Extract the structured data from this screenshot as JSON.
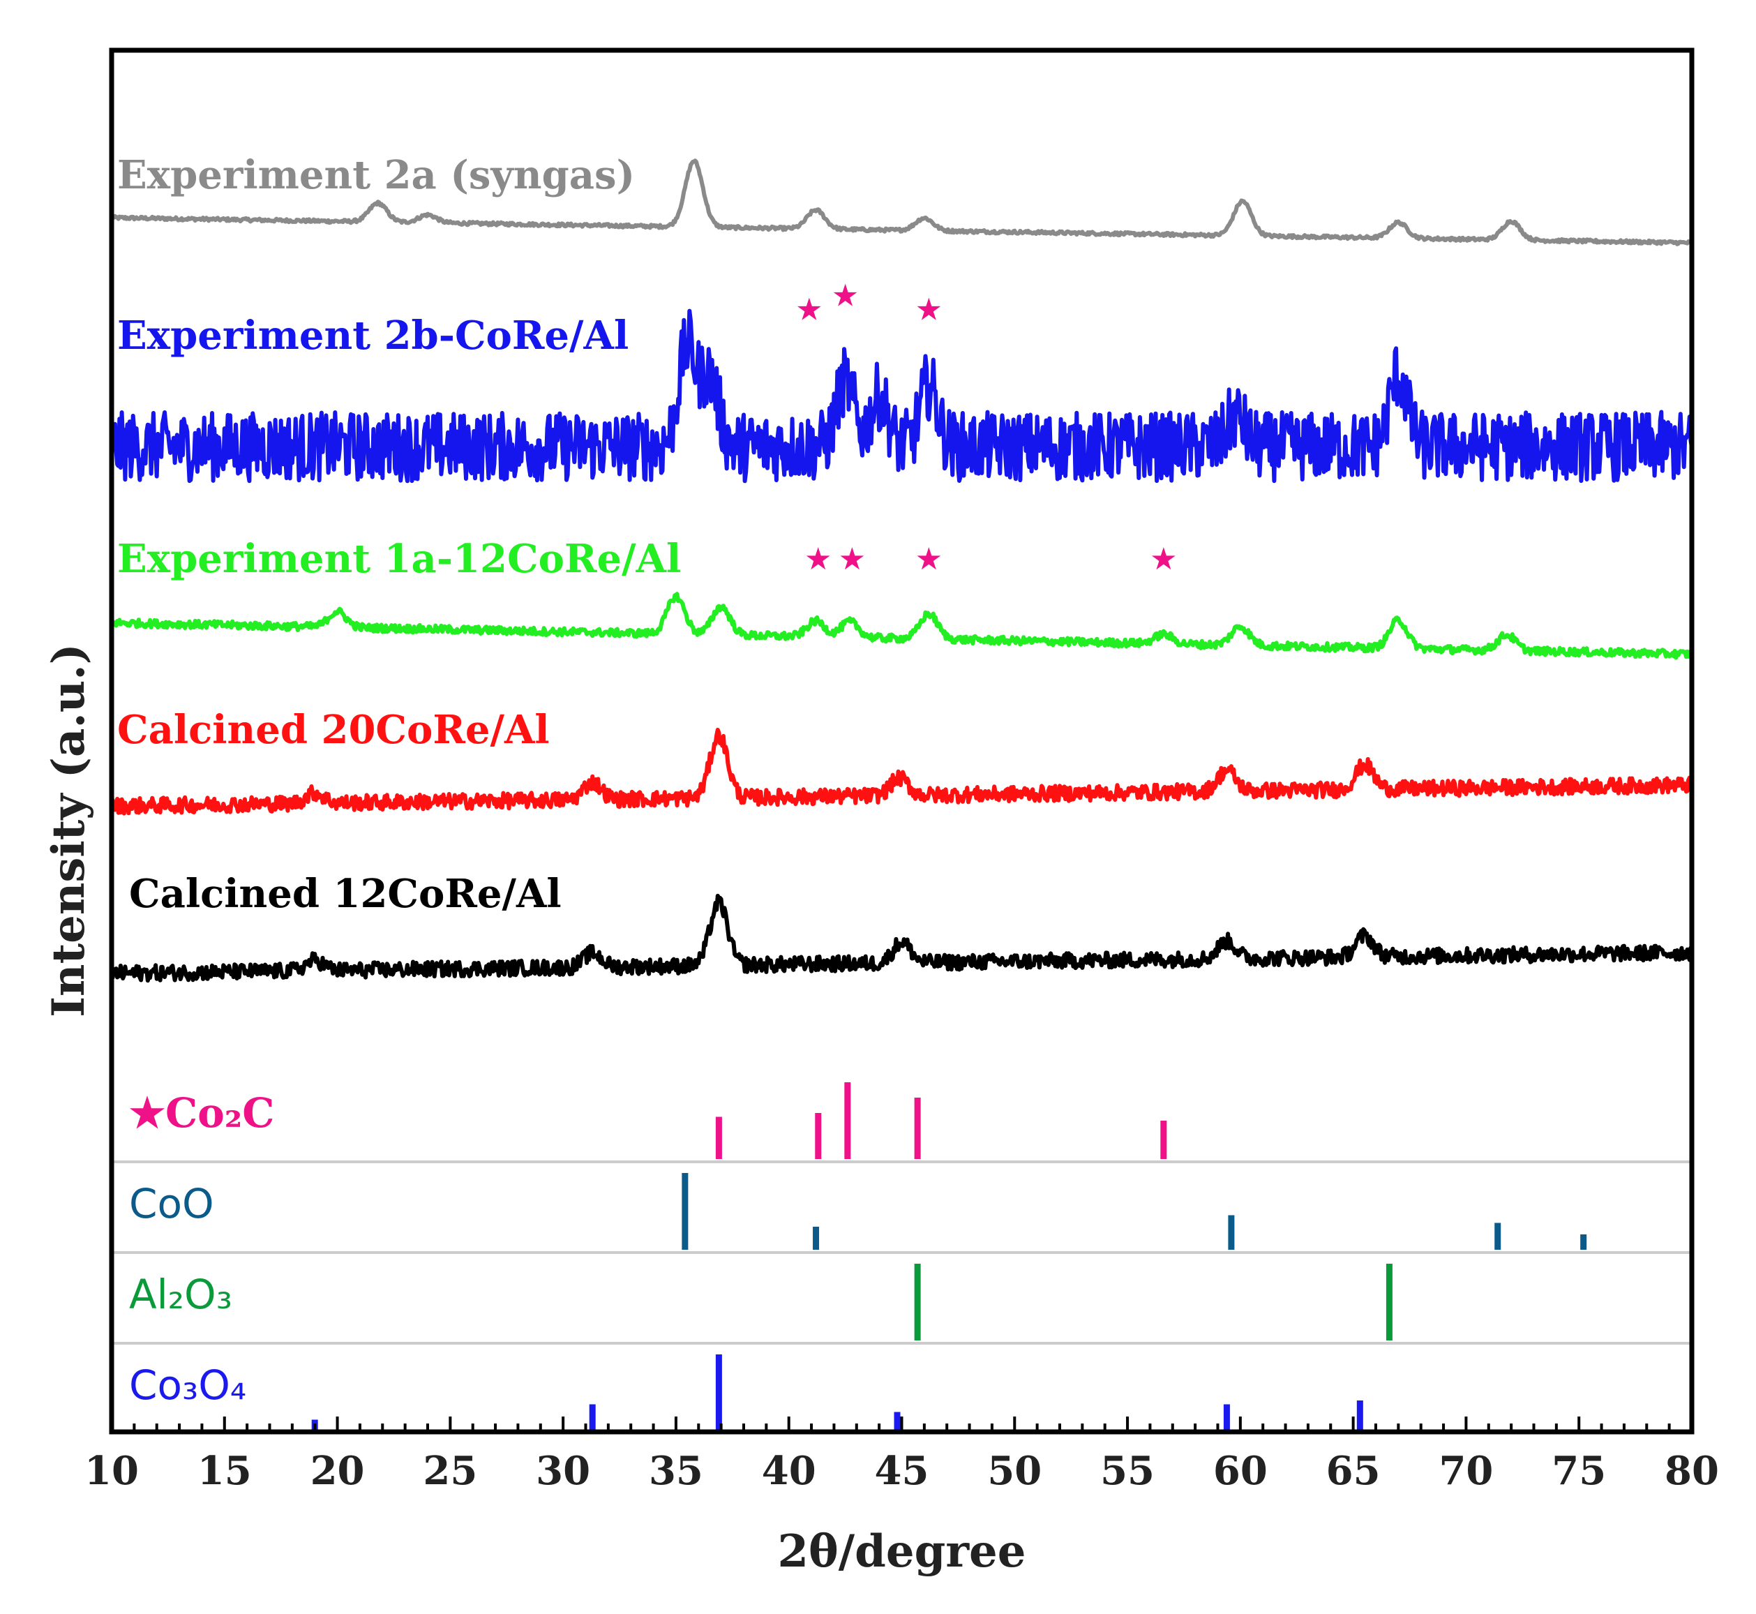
{
  "chart_data": {
    "type": "line",
    "xlabel": "2θ/degree",
    "ylabel": "Intensity (a.u.)",
    "xlim": [
      10,
      80
    ],
    "x_ticks": [
      "10",
      "15",
      "20",
      "25",
      "30",
      "35",
      "40",
      "45",
      "50",
      "55",
      "60",
      "65",
      "70",
      "75",
      "80"
    ],
    "grid": false,
    "series": [
      {
        "name": "Experiment 2a (syngas)",
        "color": "#8a8a8a",
        "noise": 0.05,
        "slope": 0.4,
        "peaks": [
          [
            21.8,
            0.6
          ],
          [
            24.0,
            0.25
          ],
          [
            35.8,
            2.1
          ],
          [
            41.2,
            0.6
          ],
          [
            46.0,
            0.4
          ],
          [
            60.1,
            1.1
          ],
          [
            67.0,
            0.5
          ],
          [
            72.0,
            0.6
          ]
        ],
        "markers": []
      },
      {
        "name": "Experiment 2b-CoRe/Al",
        "color": "#1515ee",
        "noise": 0.9,
        "slope": 0.0,
        "peaks": [
          [
            35.5,
            2.6
          ],
          [
            36.5,
            1.8
          ],
          [
            42.5,
            1.7
          ],
          [
            44.0,
            1.3
          ],
          [
            46.2,
            1.6
          ],
          [
            59.8,
            0.8
          ],
          [
            67.0,
            1.9
          ]
        ],
        "markers": [
          40.9,
          42.5,
          46.2
        ]
      },
      {
        "name": "Experiment 1a-12CoRe/Al",
        "color": "#22ee22",
        "noise": 0.12,
        "slope": 0.5,
        "peaks": [
          [
            20.0,
            0.5
          ],
          [
            35.0,
            1.2
          ],
          [
            37.0,
            0.9
          ],
          [
            41.2,
            0.5
          ],
          [
            42.7,
            0.5
          ],
          [
            46.2,
            0.8
          ],
          [
            56.6,
            0.3
          ],
          [
            60.0,
            0.6
          ],
          [
            67.0,
            0.9
          ],
          [
            71.8,
            0.5
          ]
        ],
        "markers": [
          41.3,
          42.8,
          46.2,
          56.6
        ]
      },
      {
        "name": "Calcined 20CoRe/Al",
        "color": "#ff1111",
        "noise": 0.22,
        "slope": -0.3,
        "peaks": [
          [
            19.0,
            0.3
          ],
          [
            31.3,
            0.5
          ],
          [
            36.9,
            1.8
          ],
          [
            44.9,
            0.5
          ],
          [
            59.4,
            0.6
          ],
          [
            65.5,
            0.7
          ]
        ],
        "markers": []
      },
      {
        "name": "Calcined 12CoRe/Al",
        "color": "#000000",
        "noise": 0.22,
        "slope": -0.3,
        "peaks": [
          [
            19.0,
            0.3
          ],
          [
            31.3,
            0.4
          ],
          [
            36.9,
            1.8
          ],
          [
            45.0,
            0.6
          ],
          [
            59.4,
            0.5
          ],
          [
            65.5,
            0.6
          ]
        ],
        "markers": []
      }
    ],
    "references": [
      {
        "name": "★Co₂C",
        "color": "#ee1188",
        "lines": [
          [
            36.9,
            0.55
          ],
          [
            41.3,
            0.6
          ],
          [
            42.6,
            1.0
          ],
          [
            45.7,
            0.8
          ],
          [
            56.6,
            0.5
          ]
        ]
      },
      {
        "name": "CoO",
        "color": "#0a5a8a",
        "lines": [
          [
            35.4,
            1.0
          ],
          [
            41.2,
            0.3
          ],
          [
            59.6,
            0.45
          ],
          [
            71.4,
            0.35
          ],
          [
            75.2,
            0.2
          ]
        ]
      },
      {
        "name": "Al₂O₃",
        "color": "#0a9a3a",
        "lines": [
          [
            45.7,
            1.0
          ],
          [
            66.6,
            1.0
          ]
        ]
      },
      {
        "name": "Co₃O₄",
        "color": "#1a1aee",
        "lines": [
          [
            19.0,
            0.15
          ],
          [
            31.3,
            0.35
          ],
          [
            36.9,
            1.0
          ],
          [
            44.8,
            0.25
          ],
          [
            59.4,
            0.35
          ],
          [
            65.3,
            0.4
          ]
        ]
      }
    ]
  }
}
